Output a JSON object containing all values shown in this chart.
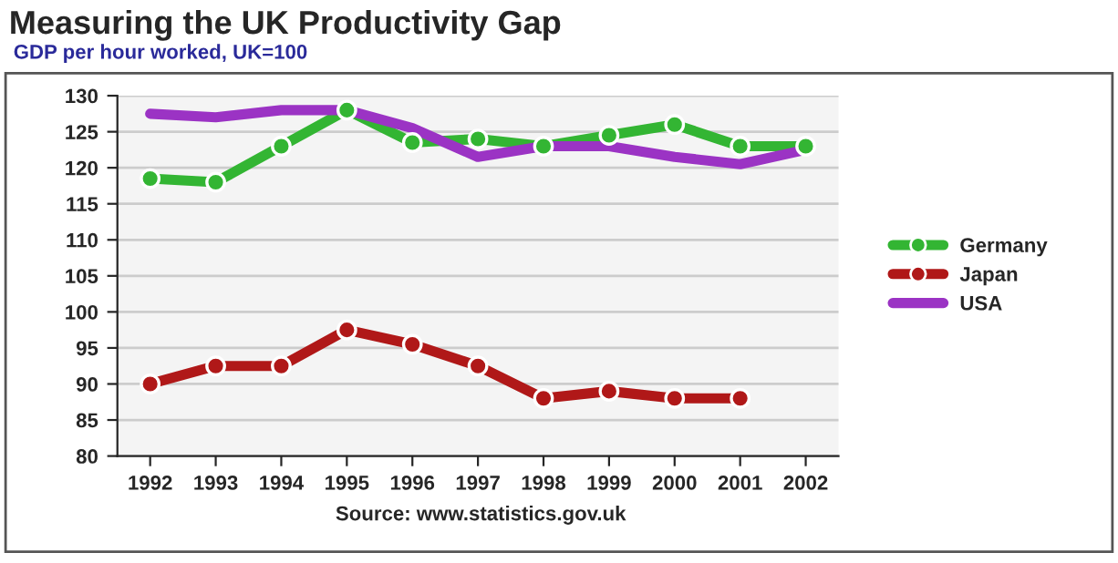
{
  "chart_data": {
    "type": "line",
    "title": "Measuring the UK Productivity Gap",
    "subtitle": "GDP per hour worked, UK=100",
    "categories": [
      "1992",
      "1993",
      "1994",
      "1995",
      "1996",
      "1997",
      "1998",
      "1999",
      "2000",
      "2001",
      "2002"
    ],
    "series": [
      {
        "name": "Germany",
        "color": "#33b533",
        "marker": "circle",
        "values": [
          118.5,
          118,
          123,
          128,
          123.5,
          124,
          123,
          124.5,
          126,
          123,
          123
        ]
      },
      {
        "name": "Japan",
        "color": "#b01818",
        "marker": "circle",
        "values": [
          90,
          92.5,
          92.5,
          97.5,
          95.5,
          92.5,
          88,
          89,
          88,
          88,
          null
        ]
      },
      {
        "name": "USA",
        "color": "#9b33c4",
        "marker": "none",
        "values": [
          127.5,
          127,
          128,
          128,
          125.5,
          121.5,
          123,
          123,
          121.5,
          120.5,
          122.5
        ]
      }
    ],
    "ylim": [
      80,
      130
    ],
    "yticks": [
      80,
      85,
      90,
      95,
      100,
      105,
      110,
      115,
      120,
      125,
      130
    ],
    "grid": "y",
    "legend": "right",
    "line_style": "solid",
    "annotations": [
      "Source: www.statistics.gov.uk"
    ]
  }
}
